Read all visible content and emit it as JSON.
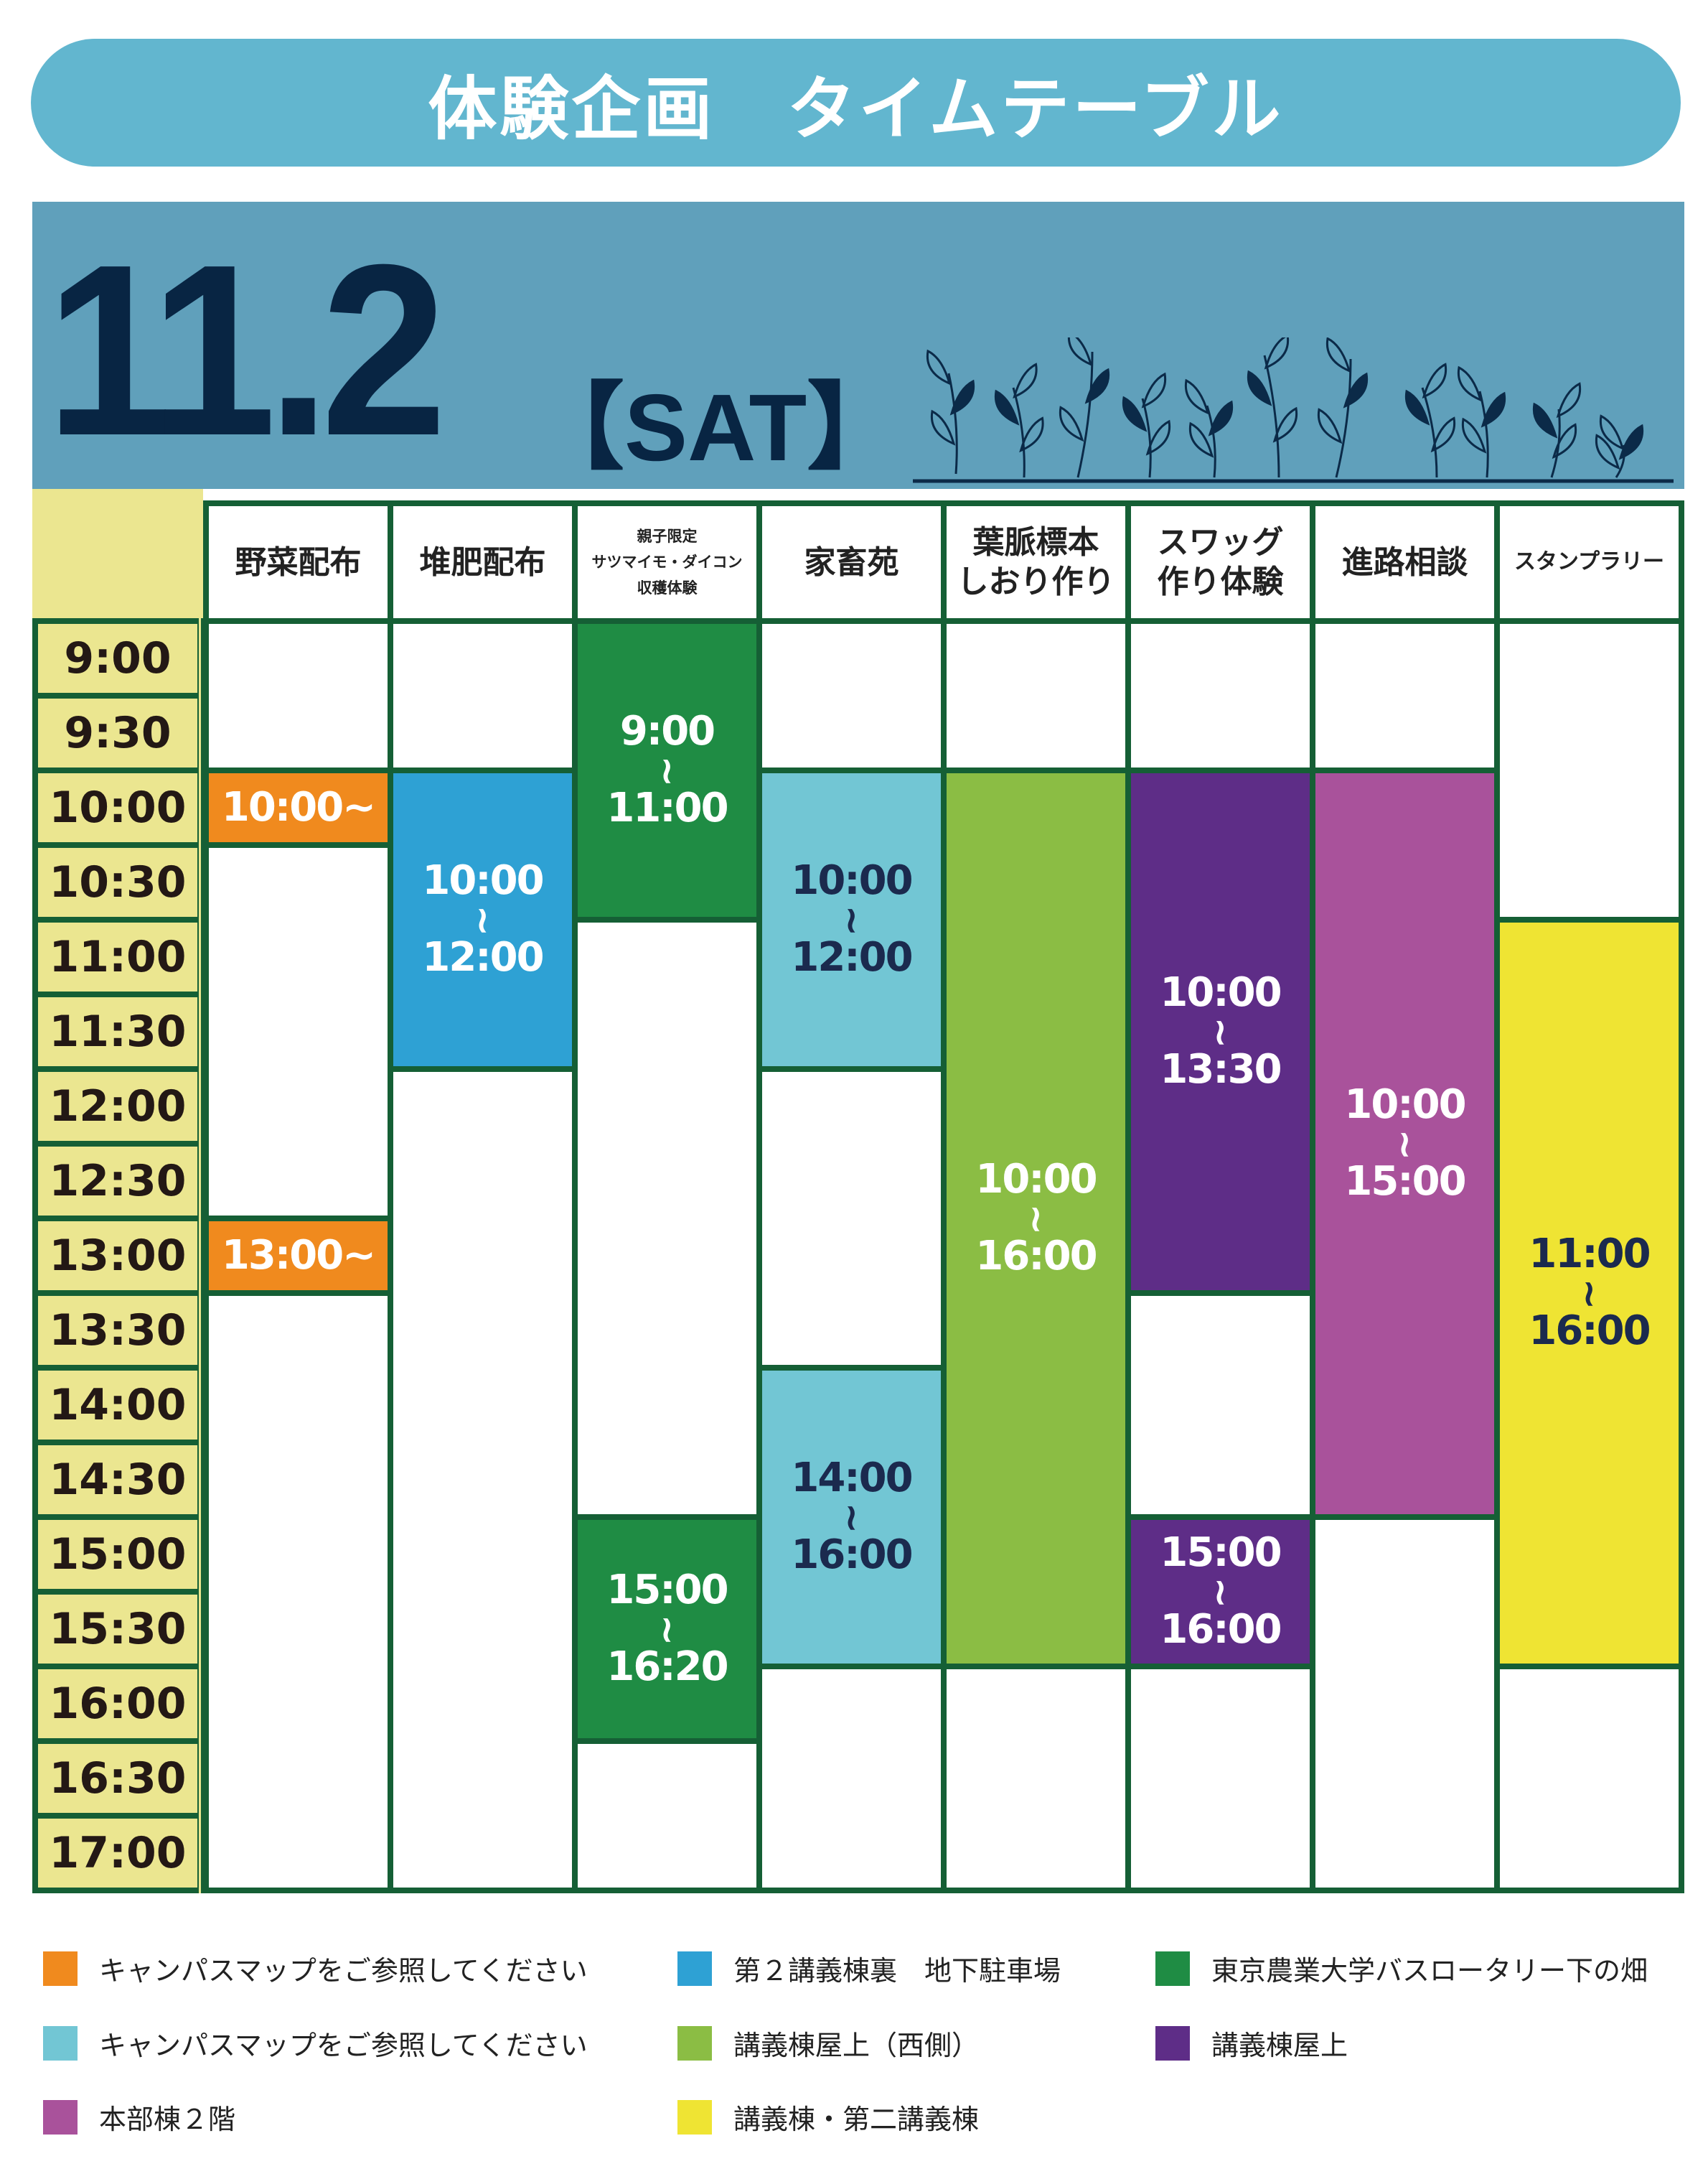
{
  "title": "体験企画　タイムテーブル",
  "date": "11.2",
  "day": "【SAT】",
  "colors": {
    "banner": "#62b6cf",
    "date_bar": "#60a0bb",
    "date_text": "#082543",
    "grid_border": "#155f35",
    "time_cell": "#ebe690",
    "orange": "#f08a1e",
    "blue": "#2ea1d4",
    "green": "#1f8c44",
    "cyan": "#72c6d4",
    "lime": "#8bbd44",
    "purple": "#5e2d87",
    "magenta": "#a9529b",
    "yellow": "#efe433"
  },
  "times": [
    "9:00",
    "9:30",
    "10:00",
    "10:30",
    "11:00",
    "11:30",
    "12:00",
    "12:30",
    "13:00",
    "13:30",
    "14:00",
    "14:30",
    "15:00",
    "15:30",
    "16:00",
    "16:30",
    "17:00"
  ],
  "columns": [
    {
      "header": [
        "野菜配布"
      ],
      "size": "normal",
      "events": [
        {
          "from": "10:00",
          "to": "10:30",
          "color": "orange",
          "text_color": "#ffffff",
          "lines": [
            "10:00~"
          ]
        },
        {
          "from": "13:00",
          "to": "13:30",
          "color": "orange",
          "text_color": "#ffffff",
          "lines": [
            "13:00~"
          ]
        }
      ]
    },
    {
      "header": [
        "堆肥配布"
      ],
      "size": "normal",
      "events": [
        {
          "from": "10:00",
          "to": "12:00",
          "color": "blue",
          "text_color": "#ffffff",
          "lines": [
            "10:00",
            "~",
            "12:00"
          ]
        }
      ]
    },
    {
      "header": [
        "親子限定",
        "サツマイモ・ダイコン",
        "収穫体験"
      ],
      "size": "small",
      "events": [
        {
          "from": "9:00",
          "to": "11:00",
          "color": "green",
          "text_color": "#ffffff",
          "lines": [
            "9:00",
            "~",
            "11:00"
          ]
        },
        {
          "from": "15:00",
          "to": "16:20",
          "color": "green",
          "text_color": "#ffffff",
          "lines": [
            "15:00",
            "~",
            "16:20"
          ]
        }
      ]
    },
    {
      "header": [
        "家畜苑"
      ],
      "size": "normal",
      "events": [
        {
          "from": "10:00",
          "to": "12:00",
          "color": "cyan",
          "text_color": "#1b2a4e",
          "lines": [
            "10:00",
            "~",
            "12:00"
          ]
        },
        {
          "from": "14:00",
          "to": "16:00",
          "color": "cyan",
          "text_color": "#1b2a4e",
          "lines": [
            "14:00",
            "~",
            "16:00"
          ]
        }
      ]
    },
    {
      "header": [
        "葉脈標本",
        "しおり作り"
      ],
      "size": "normal",
      "events": [
        {
          "from": "10:00",
          "to": "16:00",
          "color": "lime",
          "text_color": "#ffffff",
          "lines": [
            "10:00",
            "~",
            "16:00"
          ]
        }
      ]
    },
    {
      "header": [
        "スワッグ",
        "作り体験"
      ],
      "size": "normal",
      "events": [
        {
          "from": "10:00",
          "to": "13:30",
          "color": "purple",
          "text_color": "#ffffff",
          "lines": [
            "10:00",
            "~",
            "13:30"
          ]
        },
        {
          "from": "15:00",
          "to": "16:00",
          "color": "purple",
          "text_color": "#ffffff",
          "lines": [
            "15:00",
            "~",
            "16:00"
          ]
        }
      ]
    },
    {
      "header": [
        "進路相談"
      ],
      "size": "normal",
      "events": [
        {
          "from": "10:00",
          "to": "15:00",
          "color": "magenta",
          "text_color": "#ffffff",
          "lines": [
            "10:00",
            "~",
            "15:00"
          ]
        }
      ]
    },
    {
      "header": [
        "スタンプラリー"
      ],
      "size": "tiny",
      "events": [
        {
          "from": "11:00",
          "to": "16:00",
          "color": "yellow",
          "text_color": "#1b2a4e",
          "lines": [
            "11:00",
            "~",
            "16:00"
          ]
        }
      ]
    }
  ],
  "legend": [
    {
      "color": "orange",
      "label": "キャンパスマップをご参照してください"
    },
    {
      "color": "blue",
      "label": "第２講義棟裏　地下駐車場"
    },
    {
      "color": "green",
      "label": "東京農業大学バスロータリー下の畑"
    },
    {
      "color": "cyan",
      "label": "キャンパスマップをご参照してください"
    },
    {
      "color": "lime",
      "label": "講義棟屋上（西側）"
    },
    {
      "color": "purple",
      "label": "講義棟屋上"
    },
    {
      "color": "magenta",
      "label": "本部棟２階"
    },
    {
      "color": "yellow",
      "label": "講義棟・第二講義棟"
    }
  ]
}
